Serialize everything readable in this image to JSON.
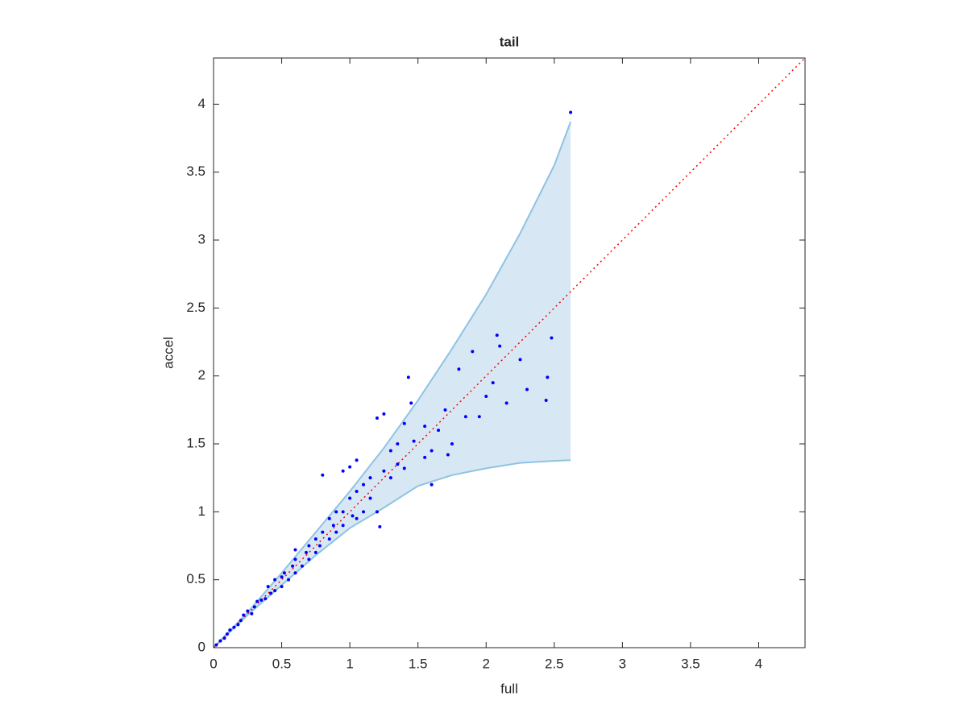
{
  "chart_data": {
    "type": "scatter",
    "title": "tail",
    "x_label": "full",
    "y_label": "accel",
    "xlim": [
      0,
      4.34
    ],
    "ylim": [
      0,
      4.34
    ],
    "xticks": [
      0,
      0.5,
      1,
      1.5,
      2,
      2.5,
      3,
      3.5,
      4
    ],
    "yticks": [
      0,
      0.5,
      1,
      1.5,
      2,
      2.5,
      3,
      3.5,
      4
    ],
    "color": "#0000ff",
    "x": [
      2.62,
      2.08,
      2.48,
      2.1,
      2.25,
      1.9,
      2.45,
      2.44,
      1.43,
      1.2,
      1.25,
      1.8,
      1.6,
      1.72,
      2.0,
      2.15,
      1.95,
      1.7,
      1.65,
      1.85,
      1.55,
      1.55,
      1.47,
      1.4,
      1.35,
      1.3,
      1.22,
      0.8,
      0.95,
      1.05,
      1.0,
      1.1,
      1.15,
      1.2,
      1.1,
      1.05,
      0.95,
      0.9,
      0.85,
      0.8,
      0.75,
      0.7,
      0.65,
      0.6,
      0.55,
      0.5,
      0.45,
      0.4,
      0.35,
      0.3,
      0.25,
      0.2,
      0.15,
      0.1,
      0.05,
      0.02,
      1.4,
      1.3,
      1.45,
      2.05,
      2.3,
      1.75,
      1.6,
      0.9,
      1.0,
      0.85,
      0.7,
      0.6,
      0.5,
      0.45,
      0.38,
      0.32,
      0.28,
      0.22,
      0.18,
      0.12,
      0.08,
      0.6,
      0.75,
      1.25,
      1.35,
      1.15,
      1.05,
      0.95,
      1.02,
      0.88,
      0.78,
      0.68,
      0.58,
      0.52,
      0.42
    ],
    "y": [
      3.94,
      2.3,
      2.28,
      2.22,
      2.12,
      2.18,
      1.99,
      1.82,
      1.99,
      1.69,
      1.72,
      2.05,
      1.2,
      1.42,
      1.85,
      1.8,
      1.7,
      1.75,
      1.6,
      1.7,
      1.63,
      1.4,
      1.52,
      1.32,
      1.35,
      1.25,
      0.89,
      1.27,
      1.3,
      1.38,
      1.33,
      1.2,
      1.1,
      1.0,
      1.0,
      0.95,
      0.9,
      0.85,
      0.8,
      0.85,
      0.7,
      0.75,
      0.6,
      0.65,
      0.5,
      0.52,
      0.42,
      0.45,
      0.35,
      0.3,
      0.27,
      0.2,
      0.15,
      0.1,
      0.05,
      0.02,
      1.65,
      1.45,
      1.8,
      1.95,
      1.9,
      1.5,
      1.45,
      1.0,
      1.1,
      0.95,
      0.65,
      0.55,
      0.45,
      0.5,
      0.36,
      0.34,
      0.25,
      0.24,
      0.17,
      0.13,
      0.07,
      0.72,
      0.8,
      1.3,
      1.5,
      1.25,
      1.15,
      1.0,
      0.97,
      0.9,
      0.75,
      0.7,
      0.6,
      0.55,
      0.4
    ],
    "band": {
      "color": "#d7e8f4",
      "edge_color": "#8ec3e2",
      "x": [
        0,
        0.25,
        0.5,
        0.75,
        1,
        1.25,
        1.5,
        1.75,
        2,
        2.25,
        2.5,
        2.62
      ],
      "upper": [
        0,
        0.26,
        0.55,
        0.85,
        1.15,
        1.47,
        1.82,
        2.2,
        2.6,
        3.05,
        3.55,
        3.87
      ],
      "lower": [
        0,
        0.24,
        0.46,
        0.68,
        0.88,
        1.03,
        1.19,
        1.27,
        1.32,
        1.36,
        1.375,
        1.38
      ]
    },
    "reference_line": {
      "color": "#ff0000",
      "x": [
        0,
        4.34
      ],
      "y": [
        0,
        4.34
      ]
    }
  }
}
